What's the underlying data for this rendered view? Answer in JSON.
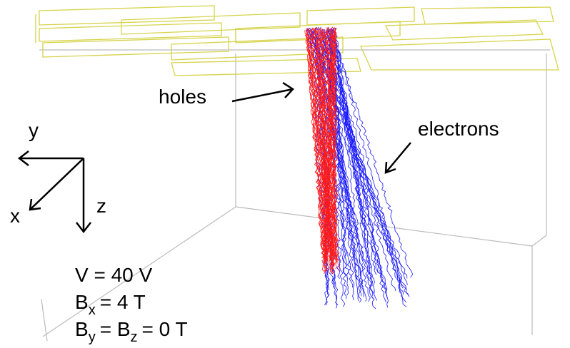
{
  "annotations": {
    "holes": "holes",
    "electrons": "electrons"
  },
  "axes": {
    "x": "x",
    "y": "y",
    "z": "z"
  },
  "parameters": [
    [
      {
        "text": "V = 40 V"
      }
    ],
    [
      {
        "text": "B"
      },
      {
        "text": "x",
        "sub": true
      },
      {
        "text": "= 4 T"
      }
    ],
    [
      {
        "text": "B"
      },
      {
        "text": "y",
        "sub": true
      },
      {
        "text": "= B"
      },
      {
        "text": "z",
        "sub": true
      },
      {
        "text": "= 0 T"
      }
    ]
  ]
}
